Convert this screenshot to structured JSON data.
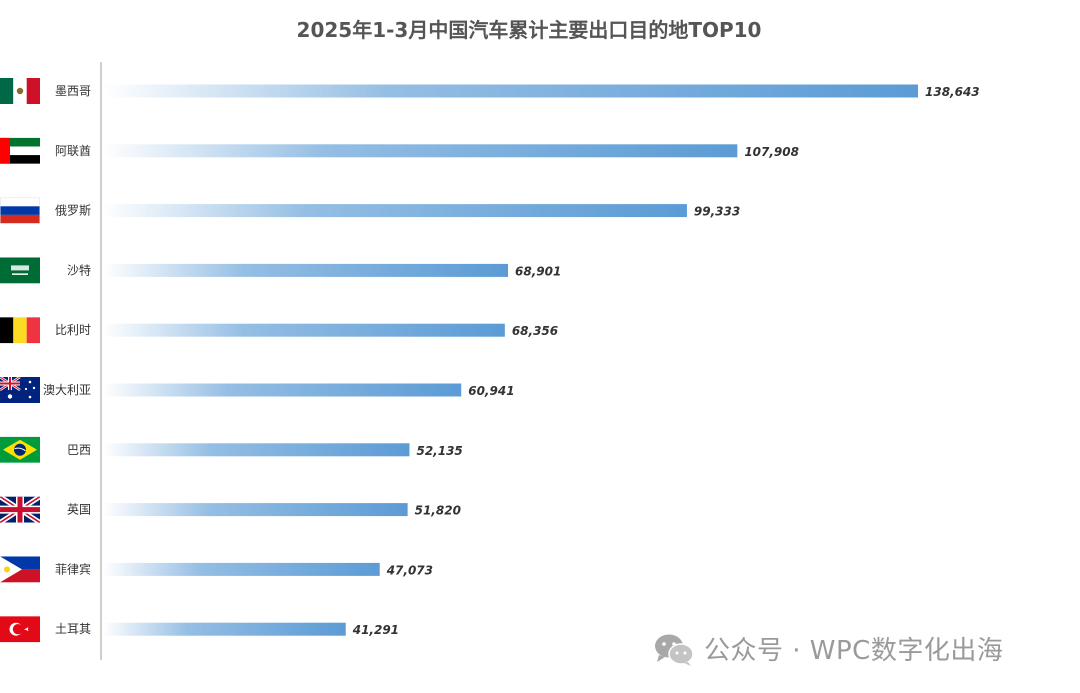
{
  "chart_data": {
    "type": "bar",
    "orientation": "horizontal",
    "title": "2025年1-3月中国汽车累计主要出口目的地TOP10",
    "categories": [
      "墨西哥",
      "阿联酋",
      "俄罗斯",
      "沙特",
      "比利时",
      "澳大利亚",
      "巴西",
      "英国",
      "菲律宾",
      "土耳其"
    ],
    "values": [
      138643,
      107908,
      99333,
      68901,
      68356,
      60941,
      52135,
      51820,
      47073,
      41291
    ],
    "value_labels": [
      "138,643",
      "107,908",
      "99,333",
      "68,901",
      "68,356",
      "60,941",
      "52,135",
      "51,820",
      "47,073",
      "41,291"
    ],
    "flags": [
      "mexico-flag",
      "uae-flag",
      "russia-flag",
      "saudi-arabia-flag",
      "belgium-flag",
      "australia-flag",
      "brazil-flag",
      "uk-flag",
      "philippines-flag",
      "turkey-flag"
    ],
    "xlim": [
      0,
      140000
    ],
    "grid": false,
    "bar_color": "#5b9bd5"
  },
  "watermark": {
    "icon": "wechat-icon",
    "text": "公众号 · WPC数字化出海"
  }
}
